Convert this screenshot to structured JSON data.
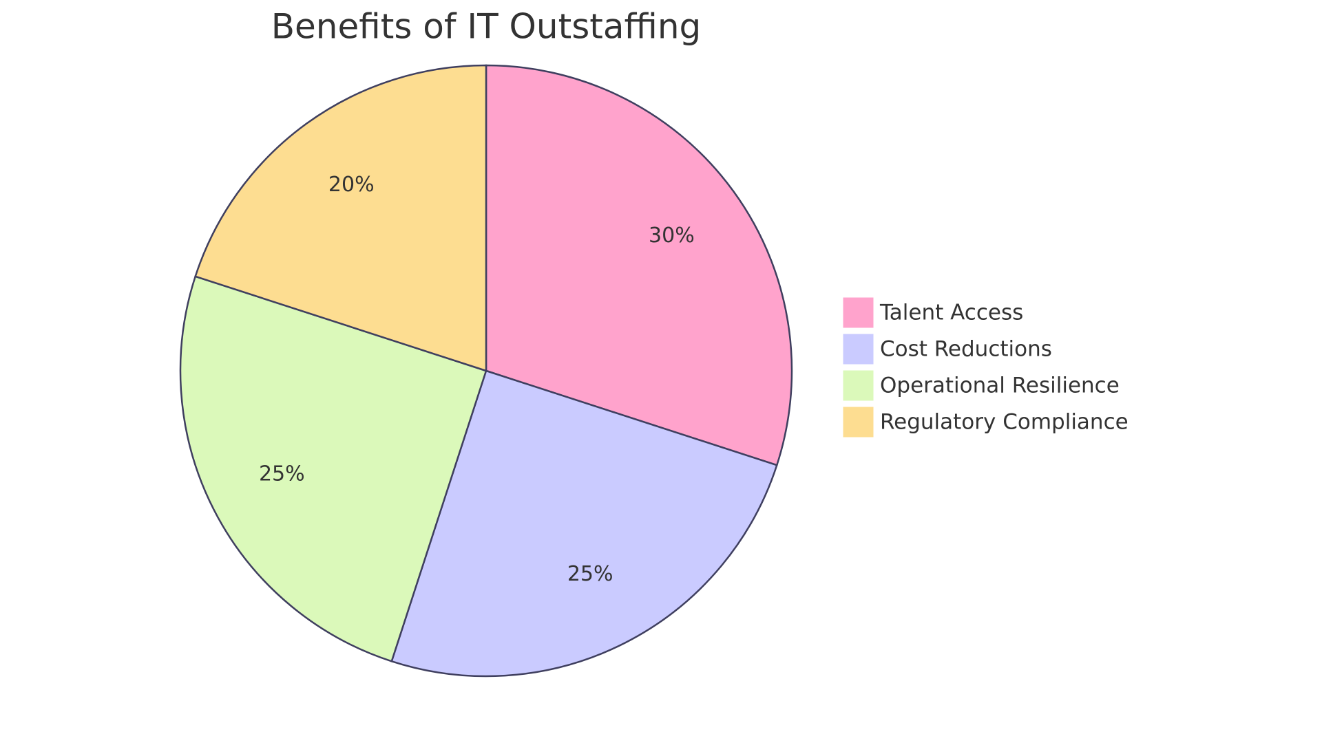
{
  "chart_data": {
    "type": "pie",
    "title": "Benefits of IT Outstaffing",
    "categories": [
      "Talent Access",
      "Cost Reductions",
      "Operational Resilience",
      "Regulatory Compliance"
    ],
    "values": [
      30,
      25,
      25,
      20
    ],
    "value_labels": [
      "30%",
      "25%",
      "25%",
      "20%"
    ],
    "colors": [
      "#ffa3cc",
      "#cacbff",
      "#dbf9ba",
      "#fddd91"
    ],
    "legend": "right"
  }
}
